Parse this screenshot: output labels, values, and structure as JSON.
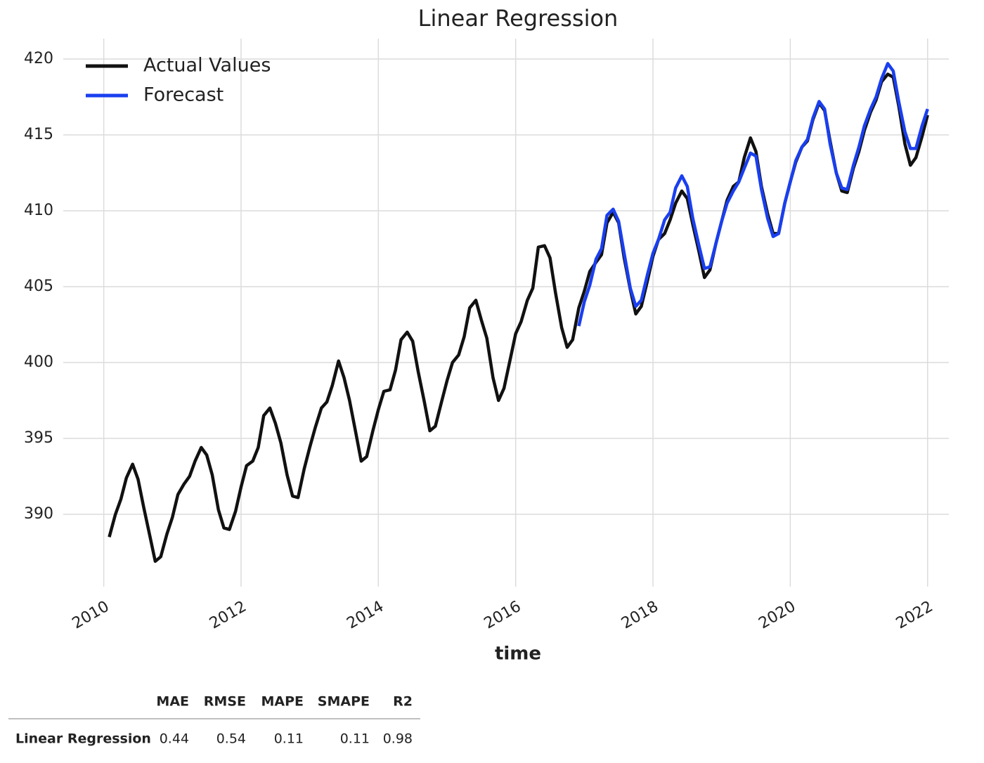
{
  "chart_data": {
    "type": "line",
    "title": "Linear Regression",
    "x_label": "time",
    "xlim": [
      2009.41,
      2022.31
    ],
    "xticks": [
      2010,
      2012,
      2014,
      2016,
      2018,
      2020,
      2022
    ],
    "ylim": [
      385.23,
      421.34
    ],
    "yticks": [
      390,
      395,
      400,
      405,
      410,
      415,
      420
    ],
    "grid": true,
    "legend": "upper left",
    "series": [
      {
        "name": "Actual Values",
        "color": "#111111",
        "x": [
          2010.08,
          2010.17,
          2010.25,
          2010.33,
          2010.42,
          2010.5,
          2010.58,
          2010.67,
          2010.75,
          2010.83,
          2010.92,
          2011,
          2011.08,
          2011.17,
          2011.25,
          2011.33,
          2011.42,
          2011.5,
          2011.58,
          2011.67,
          2011.75,
          2011.83,
          2011.92,
          2012,
          2012.08,
          2012.17,
          2012.25,
          2012.33,
          2012.42,
          2012.5,
          2012.58,
          2012.67,
          2012.75,
          2012.83,
          2012.92,
          2013,
          2013.08,
          2013.17,
          2013.25,
          2013.33,
          2013.42,
          2013.5,
          2013.58,
          2013.67,
          2013.75,
          2013.83,
          2013.92,
          2014,
          2014.08,
          2014.17,
          2014.25,
          2014.33,
          2014.42,
          2014.5,
          2014.58,
          2014.67,
          2014.75,
          2014.83,
          2014.92,
          2015,
          2015.08,
          2015.17,
          2015.25,
          2015.33,
          2015.42,
          2015.5,
          2015.58,
          2015.67,
          2015.75,
          2015.83,
          2015.92,
          2016,
          2016.08,
          2016.17,
          2016.25,
          2016.33,
          2016.42,
          2016.5,
          2016.58,
          2016.67,
          2016.75,
          2016.83,
          2016.92,
          2017,
          2017.08,
          2017.17,
          2017.25,
          2017.33,
          2017.42,
          2017.5,
          2017.58,
          2017.67,
          2017.75,
          2017.83,
          2017.92,
          2018,
          2018.08,
          2018.17,
          2018.25,
          2018.33,
          2018.42,
          2018.5,
          2018.58,
          2018.67,
          2018.75,
          2018.83,
          2018.92,
          2019,
          2019.08,
          2019.17,
          2019.25,
          2019.33,
          2019.42,
          2019.5,
          2019.58,
          2019.67,
          2019.75,
          2019.83,
          2019.92,
          2020,
          2020.08,
          2020.17,
          2020.25,
          2020.33,
          2020.42,
          2020.5,
          2020.58,
          2020.67,
          2020.75,
          2020.83,
          2020.92,
          2021,
          2021.08,
          2021.17,
          2021.25,
          2021.33,
          2021.42,
          2021.5,
          2021.58,
          2021.67,
          2021.75,
          2021.83,
          2021.92,
          2022
        ],
        "values": [
          388.5,
          390.0,
          391.0,
          392.4,
          393.3,
          392.3,
          390.5,
          388.6,
          386.9,
          387.2,
          388.7,
          389.8,
          391.3,
          392.0,
          392.5,
          393.5,
          394.4,
          393.9,
          392.6,
          390.3,
          389.1,
          389.0,
          390.2,
          391.8,
          393.2,
          393.5,
          394.4,
          396.5,
          397.0,
          396.0,
          394.7,
          392.6,
          391.2,
          391.1,
          393.0,
          394.4,
          395.7,
          397.0,
          397.4,
          398.5,
          400.1,
          399.0,
          397.5,
          395.4,
          393.5,
          393.8,
          395.5,
          396.9,
          398.1,
          398.2,
          399.5,
          401.5,
          402.0,
          401.4,
          399.4,
          397.4,
          395.5,
          395.8,
          397.4,
          398.8,
          400.0,
          400.5,
          401.7,
          403.6,
          404.1,
          402.8,
          401.6,
          399.0,
          397.5,
          398.3,
          400.2,
          401.9,
          402.7,
          404.1,
          404.9,
          407.6,
          407.7,
          406.9,
          404.6,
          402.3,
          401.0,
          401.5,
          403.6,
          404.7,
          406.0,
          406.6,
          407.1,
          409.2,
          409.9,
          409.2,
          406.9,
          404.8,
          403.2,
          403.7,
          405.4,
          407.0,
          408.1,
          408.5,
          409.4,
          410.5,
          411.3,
          410.8,
          409.1,
          407.3,
          405.6,
          406.1,
          407.9,
          409.3,
          410.7,
          411.6,
          411.9,
          413.5,
          414.8,
          413.9,
          411.6,
          409.8,
          408.5,
          408.5,
          410.5,
          411.9,
          413.2,
          414.2,
          414.6,
          416.0,
          417.1,
          416.6,
          414.6,
          412.5,
          411.3,
          411.2,
          412.8,
          413.9,
          415.3,
          416.5,
          417.3,
          418.5,
          419.0,
          418.8,
          416.9,
          414.4,
          413.0,
          413.5,
          414.9,
          416.3
        ]
      },
      {
        "name": "Forecast",
        "color": "#1a3ff0",
        "x": [
          2016.92,
          2017,
          2017.08,
          2017.17,
          2017.25,
          2017.33,
          2017.42,
          2017.5,
          2017.58,
          2017.67,
          2017.75,
          2017.83,
          2017.92,
          2018,
          2018.08,
          2018.17,
          2018.25,
          2018.33,
          2018.42,
          2018.5,
          2018.58,
          2018.67,
          2018.75,
          2018.83,
          2018.92,
          2019,
          2019.08,
          2019.17,
          2019.25,
          2019.33,
          2019.42,
          2019.5,
          2019.58,
          2019.67,
          2019.75,
          2019.83,
          2019.92,
          2020,
          2020.08,
          2020.17,
          2020.25,
          2020.33,
          2020.42,
          2020.5,
          2020.58,
          2020.67,
          2020.75,
          2020.83,
          2020.92,
          2021,
          2021.08,
          2021.17,
          2021.25,
          2021.33,
          2021.42,
          2021.5,
          2021.58,
          2021.67,
          2021.75,
          2021.83,
          2021.92,
          2022
        ],
        "values": [
          402.4,
          404.0,
          405.1,
          406.8,
          407.5,
          409.7,
          410.1,
          409.3,
          407.2,
          404.9,
          403.7,
          404.1,
          405.8,
          407.2,
          408.1,
          409.4,
          409.9,
          411.5,
          412.3,
          411.6,
          409.5,
          407.7,
          406.2,
          406.3,
          407.9,
          409.3,
          410.5,
          411.3,
          411.9,
          412.8,
          413.8,
          413.6,
          411.4,
          409.5,
          408.3,
          408.5,
          410.5,
          411.9,
          413.3,
          414.2,
          414.7,
          416.1,
          417.2,
          416.7,
          414.4,
          412.5,
          411.5,
          411.4,
          413.0,
          414.2,
          415.6,
          416.7,
          417.5,
          418.7,
          419.7,
          419.2,
          417.2,
          415.2,
          414.1,
          414.1,
          415.6,
          416.7
        ]
      }
    ]
  },
  "table": {
    "columns": [
      "MAE",
      "RMSE",
      "MAPE",
      "SMAPE",
      "R2"
    ],
    "rows": [
      [
        "Linear Regression",
        0.44,
        0.54,
        0.11,
        0.11,
        0.98
      ]
    ]
  }
}
